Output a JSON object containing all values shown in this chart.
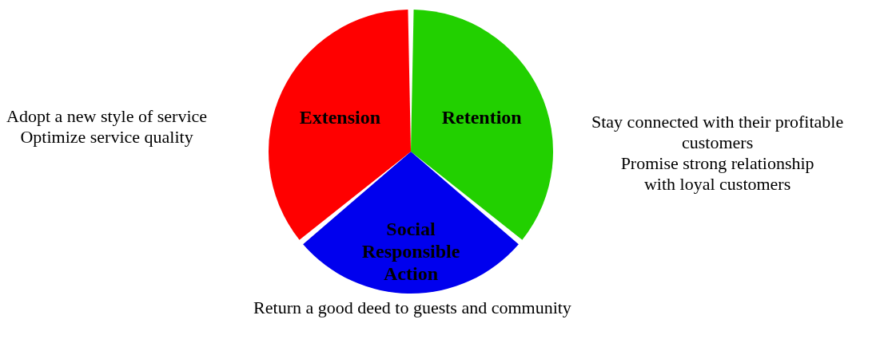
{
  "chart_data": {
    "type": "pie",
    "categories": [
      "Retention",
      "Social Responsible Action",
      "Extension"
    ],
    "values": [
      36,
      28,
      36
    ],
    "colors": [
      "#22d000",
      "#0000ee",
      "#ff0000"
    ],
    "annotations": [
      "Adopt a new style of service\nOptimize service quality",
      "Stay connected with their profitable\ncustomers\nPromise strong relationship\nwith loyal customers",
      "Return a good deed to guests and community"
    ]
  }
}
